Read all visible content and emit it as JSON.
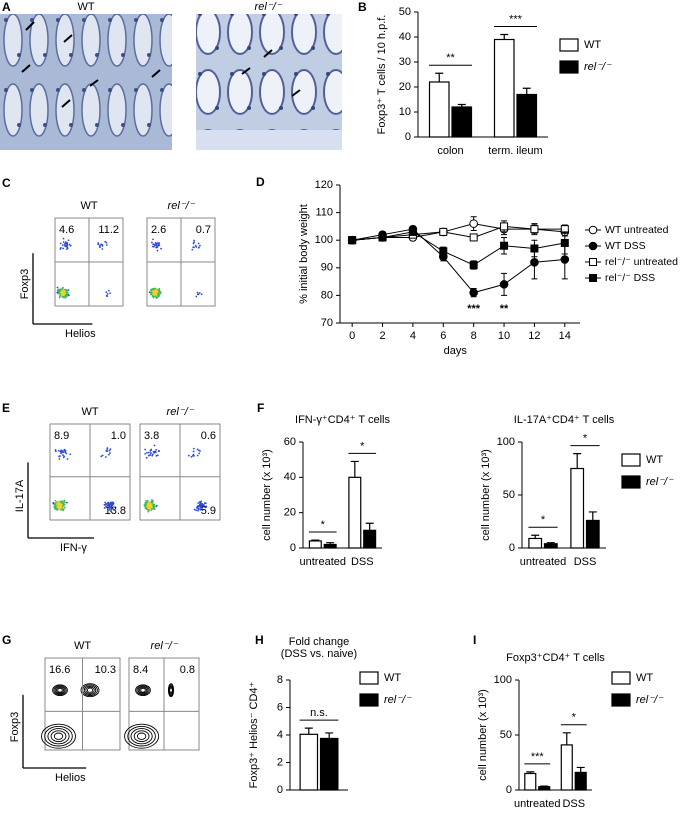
{
  "panels": {
    "A": {
      "letter": "A",
      "labels": [
        "WT",
        "rel⁻/⁻"
      ]
    },
    "C": {
      "letter": "C",
      "labels": [
        "WT",
        "rel⁻/⁻"
      ],
      "y_axis": "Foxp3",
      "x_axis": "Helios",
      "quadrants": [
        [
          "4.6",
          "11.2"
        ],
        [
          "2.6",
          "0.7"
        ]
      ]
    },
    "E": {
      "letter": "E",
      "labels": [
        "WT",
        "rel⁻/⁻"
      ],
      "y_axis": "IL-17A",
      "x_axis": "IFN-γ",
      "quadrants": [
        [
          "8.9",
          "1.0",
          "13.8"
        ],
        [
          "3.8",
          "0.6",
          "5.9"
        ]
      ]
    },
    "G": {
      "letter": "G",
      "labels": [
        "WT",
        "rel⁻/⁻"
      ],
      "y_axis": "Foxp3",
      "x_axis": "Helios",
      "quadrants": [
        [
          "16.6",
          "10.3"
        ],
        [
          "8.4",
          "0.8"
        ]
      ]
    }
  },
  "chart_data": [
    {
      "type": "bar",
      "letter": "B",
      "y_label": "Foxp3⁺ T cells / 10 h.p.f.",
      "categories": [
        "colon",
        "term. ileum"
      ],
      "series": [
        {
          "name": "WT",
          "color": "#ffffff",
          "values": [
            22,
            39
          ],
          "errors": [
            3.5,
            2
          ]
        },
        {
          "name": "rel⁻/⁻",
          "color": "#000000",
          "values": [
            12,
            17
          ],
          "errors": [
            1,
            2.5
          ]
        }
      ],
      "ylim": [
        0,
        50
      ],
      "yticks": [
        0,
        10,
        20,
        30,
        40,
        50
      ],
      "annotations": [
        "**",
        "***"
      ]
    },
    {
      "type": "line",
      "letter": "D",
      "y_label": "% initial body weight",
      "x_label": "days",
      "x": [
        0,
        2,
        4,
        6,
        8,
        10,
        12,
        14
      ],
      "series": [
        {
          "name": "WT untreated",
          "marker": "open-circle",
          "color": "#000000",
          "values": [
            100,
            101,
            101,
            103,
            106,
            104,
            104,
            103
          ],
          "errors": [
            0.5,
            1,
            1,
            1,
            2.5,
            2,
            1.5,
            1.5
          ]
        },
        {
          "name": "WT DSS",
          "marker": "filled-circle",
          "color": "#000000",
          "values": [
            100,
            102,
            104,
            94,
            81,
            84,
            92,
            93
          ],
          "errors": [
            0.5,
            1,
            1,
            1.5,
            1.5,
            4,
            6,
            7
          ]
        },
        {
          "name": "rel⁻/⁻ untreated",
          "marker": "open-square",
          "color": "#000000",
          "values": [
            100,
            101,
            102,
            103,
            101,
            105,
            104,
            104
          ],
          "errors": [
            0.5,
            1,
            1,
            1,
            1,
            2,
            2,
            1.5
          ]
        },
        {
          "name": "rel⁻/⁻ DSS",
          "marker": "filled-square",
          "color": "#000000",
          "values": [
            100,
            101,
            103,
            96,
            91,
            98,
            97,
            99
          ],
          "errors": [
            0.5,
            1,
            1,
            1.5,
            1.5,
            3,
            3,
            4
          ]
        }
      ],
      "xlim": [
        -0.8,
        15
      ],
      "xticks": [
        0,
        2,
        4,
        6,
        8,
        10,
        12,
        14
      ],
      "ylim": [
        70,
        120
      ],
      "yticks": [
        70,
        80,
        90,
        100,
        110,
        120
      ],
      "annotations": [
        {
          "text": "***",
          "x": 8
        },
        {
          "text": "**",
          "x": 10
        }
      ]
    },
    {
      "type": "bar",
      "letter": "F",
      "title": "IFN-γ⁺CD4⁺ T cells",
      "y_label": "cell number (x 10³)",
      "categories": [
        "untreated",
        "DSS"
      ],
      "series": [
        {
          "color": "#ffffff",
          "values": [
            4,
            40
          ],
          "errors": [
            0.5,
            9
          ]
        },
        {
          "color": "#000000",
          "values": [
            2,
            10
          ],
          "errors": [
            1,
            4
          ]
        }
      ],
      "ylim": [
        0,
        60
      ],
      "yticks": [
        0,
        20,
        40,
        60
      ],
      "annotations": [
        "*",
        "*"
      ]
    },
    {
      "type": "bar",
      "title": "IL-17A⁺CD4⁺ T cells",
      "y_label": "cell number (x 10³)",
      "categories": [
        "untreated",
        "DSS"
      ],
      "series": [
        {
          "name": "WT",
          "color": "#ffffff",
          "values": [
            9,
            75
          ],
          "errors": [
            3,
            14
          ]
        },
        {
          "name": "rel⁻/⁻",
          "color": "#000000",
          "values": [
            4,
            26
          ],
          "errors": [
            1,
            8
          ]
        }
      ],
      "ylim": [
        0,
        100
      ],
      "yticks": [
        0,
        50,
        100
      ],
      "annotations": [
        "*",
        "*"
      ]
    },
    {
      "type": "bar",
      "letter": "H",
      "title": "Fold change",
      "subtitle": "(DSS vs. naive)",
      "y_label": "Foxp3⁺ Helios⁻ CD4⁺",
      "categories": [
        null
      ],
      "series": [
        {
          "name": "WT",
          "color": "#ffffff",
          "values": [
            4.05
          ],
          "errors": [
            0.45
          ]
        },
        {
          "name": "rel⁻/⁻",
          "color": "#000000",
          "values": [
            3.75
          ],
          "errors": [
            0.4
          ]
        }
      ],
      "ylim": [
        0,
        8
      ],
      "yticks": [
        0,
        2,
        4,
        6,
        8
      ],
      "annotations": [
        "n.s."
      ]
    },
    {
      "type": "bar",
      "letter": "I",
      "title": "Foxp3⁺CD4⁺ T cells",
      "y_label": "cell number (x 10³)",
      "categories": [
        "untreated",
        "DSS"
      ],
      "series": [
        {
          "name": "WT",
          "color": "#ffffff",
          "values": [
            15,
            41
          ],
          "errors": [
            1.5,
            11
          ]
        },
        {
          "name": "rel⁻/⁻",
          "color": "#000000",
          "values": [
            3,
            16
          ],
          "errors": [
            0.5,
            4.5
          ]
        }
      ],
      "ylim": [
        0,
        100
      ],
      "yticks": [
        0,
        50,
        100
      ],
      "annotations": [
        "***",
        "*"
      ]
    }
  ]
}
